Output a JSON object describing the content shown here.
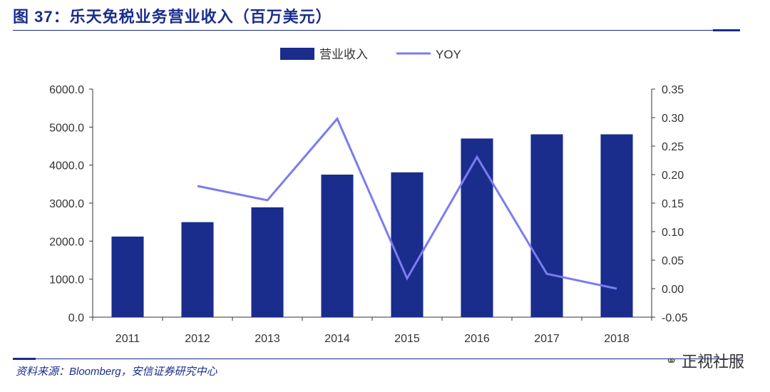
{
  "header": {
    "title": "图 37：乐天免税业务营业收入（百万美元）"
  },
  "footer": {
    "source": "资料来源：Bloomberg，安信证券研究中心"
  },
  "watermark": {
    "text": "正视社服",
    "icon": "wechat-icon"
  },
  "colors": {
    "bar": "#1a2d8c",
    "line": "#7b7cf0",
    "axis": "#333333"
  },
  "chart_data": {
    "type": "bar+line",
    "categories": [
      "2011",
      "2012",
      "2013",
      "2014",
      "2015",
      "2016",
      "2017",
      "2018"
    ],
    "series": [
      {
        "name": "营业收入",
        "type": "bar",
        "axis": "left",
        "values": [
          2120,
          2500,
          2890,
          3750,
          3810,
          4700,
          4810,
          4810
        ]
      },
      {
        "name": "YOY",
        "type": "line",
        "axis": "right",
        "values": [
          null,
          0.18,
          0.155,
          0.298,
          0.018,
          0.231,
          0.026,
          0.0
        ]
      }
    ],
    "y_left": {
      "min": 0,
      "max": 6000,
      "step": 1000,
      "tick_labels": [
        "0.0",
        "1000.0",
        "2000.0",
        "3000.0",
        "4000.0",
        "5000.0",
        "6000.0"
      ]
    },
    "y_right": {
      "min": -0.05,
      "max": 0.35,
      "step": 0.05,
      "tick_labels": [
        "-0.05",
        "0.00",
        "0.05",
        "0.10",
        "0.15",
        "0.20",
        "0.25",
        "0.30",
        "0.35"
      ]
    },
    "legend_position": "top-center",
    "grid": false
  }
}
